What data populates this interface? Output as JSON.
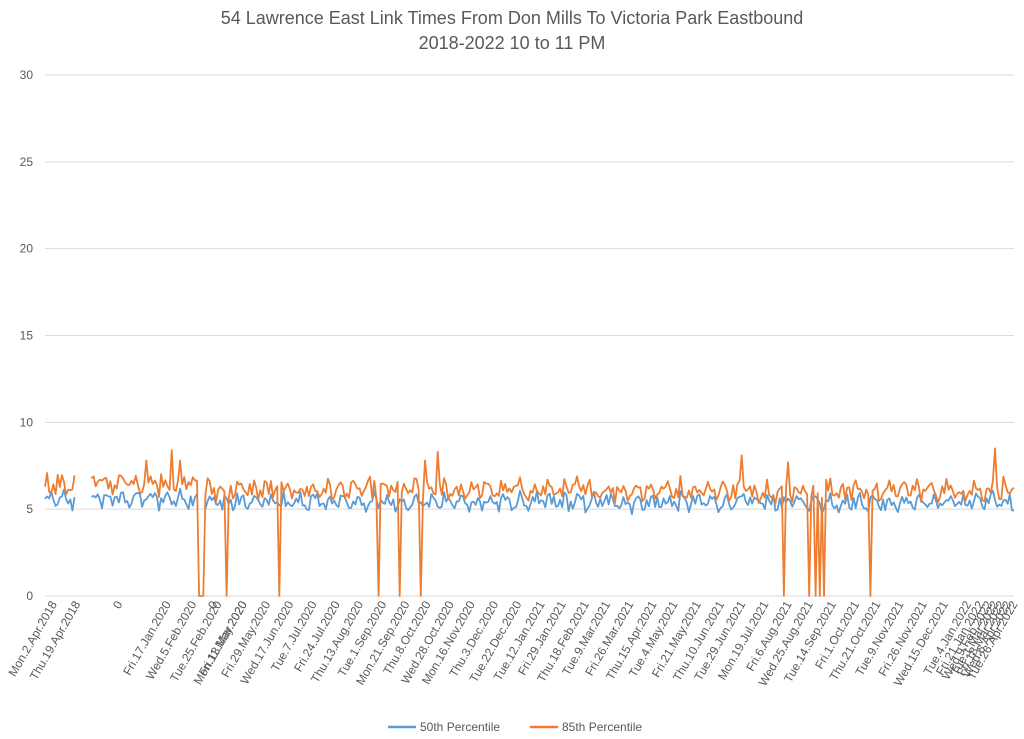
{
  "chart_data": {
    "type": "line",
    "title": "54 Lawrence East Link Times From Don Mills To Victoria Park Eastbound",
    "subtitle": "2018-2022 10 to 11 PM",
    "xlabel": "",
    "ylabel": "",
    "ylim": [
      0,
      30
    ],
    "yticks": [
      0,
      5,
      10,
      15,
      20,
      25,
      30
    ],
    "grid": true,
    "legend_position": "bottom",
    "n_points": 460,
    "x_tick_labels": [
      {
        "i": 4,
        "label": "Mon.2.Apr.2018"
      },
      {
        "i": 15,
        "label": "Thu.19.Apr.2018"
      },
      {
        "i": 35,
        "label": "0"
      },
      {
        "i": 58,
        "label": "Fri.17.Jan.2020"
      },
      {
        "i": 70,
        "label": "Wed.5.Feb.2020"
      },
      {
        "i": 82,
        "label": "Tue.25.Feb.2020"
      },
      {
        "i": 94,
        "label": "Fri.13.Mar.2020"
      },
      {
        "i": 80,
        "label": "0"
      },
      {
        "i": 94,
        "label": "Mon.11.May.2020"
      },
      {
        "i": 105,
        "label": "Fri.29.May.2020"
      },
      {
        "i": 116,
        "label": "Wed.17.Jun.2020"
      },
      {
        "i": 127,
        "label": "Tue.7.Jul.2020"
      },
      {
        "i": 138,
        "label": "Fri.24.Jul.2020"
      },
      {
        "i": 149,
        "label": "Thu.13.Aug.2020"
      },
      {
        "i": 160,
        "label": "Tue.1.Sep.2020"
      },
      {
        "i": 171,
        "label": "Mon.21.Sep.2020"
      },
      {
        "i": 181,
        "label": "Thu.8.Oct.2020"
      },
      {
        "i": 192,
        "label": "Wed.28.Oct.2020"
      },
      {
        "i": 202,
        "label": "Mon.16.Nov.2020"
      },
      {
        "i": 213,
        "label": "Thu.3.Dec.2020"
      },
      {
        "i": 224,
        "label": "Tue.22.Dec.2020"
      },
      {
        "i": 235,
        "label": "Tue.12.Jan.2021"
      },
      {
        "i": 245,
        "label": "Fri.29.Jan.2021"
      },
      {
        "i": 256,
        "label": "Thu.18.Feb.2021"
      },
      {
        "i": 266,
        "label": "Tue.9.Mar.2021"
      },
      {
        "i": 277,
        "label": "Fri.26.Mar.2021"
      },
      {
        "i": 288,
        "label": "Thu.15.Apr.2021"
      },
      {
        "i": 298,
        "label": "Tue.4.May.2021"
      },
      {
        "i": 309,
        "label": "Fri.21.May.2021"
      },
      {
        "i": 320,
        "label": "Thu.10.Jun.2021"
      },
      {
        "i": 330,
        "label": "Tue.29.Jun.2021"
      },
      {
        "i": 341,
        "label": "Mon.19.Jul.2021"
      },
      {
        "i": 352,
        "label": "Fri.6.Aug.2021"
      },
      {
        "i": 362,
        "label": "Wed.25.Aug.2021"
      },
      {
        "i": 373,
        "label": "Tue.14.Sep.2021"
      },
      {
        "i": 384,
        "label": "Fri.1.Oct.2021"
      },
      {
        "i": 394,
        "label": "Thu.21.Oct.2021"
      },
      {
        "i": 405,
        "label": "Tue.9.Nov.2021"
      },
      {
        "i": 416,
        "label": "Fri.26.Nov.2021"
      },
      {
        "i": 426,
        "label": "Wed.15.Dec.2021"
      },
      {
        "i": 437,
        "label": "Tue.4.Jan.2022"
      },
      {
        "i": 443,
        "label": "Fri.21.Jan.2022"
      },
      {
        "i": 447,
        "label": "Wed.9.Feb.2022"
      },
      {
        "i": 450,
        "label": "Tue.1.Mar.2022"
      },
      {
        "i": 453,
        "label": "Fri.18.Mar.2022"
      },
      {
        "i": 456,
        "label": "Wed.6.Apr.2022"
      },
      {
        "i": 459,
        "label": "Tue.26.Apr.2022"
      }
    ],
    "series": [
      {
        "name": "50th Percentile",
        "color": "#5B9BD5",
        "base": 5.4,
        "amplitude": 0.6,
        "segments": [
          {
            "start": 0,
            "end": 14,
            "level": 5.5
          },
          {
            "start": 22,
            "end": 72,
            "level": 5.6
          },
          {
            "start": 76,
            "end": 459,
            "level": 5.4
          }
        ],
        "gaps": [
          [
            15,
            21
          ]
        ],
        "dropouts": []
      },
      {
        "name": "85th Percentile",
        "color": "#ED7D31",
        "base": 6.2,
        "amplitude": 0.9,
        "segments": [
          {
            "start": 0,
            "end": 14,
            "level": 6.4
          },
          {
            "start": 22,
            "end": 72,
            "level": 6.5
          },
          {
            "start": 76,
            "end": 459,
            "level": 6.1
          }
        ],
        "gaps": [
          [
            15,
            21
          ]
        ],
        "dropouts": [
          73,
          74,
          75,
          86,
          111,
          158,
          168,
          178,
          350,
          362,
          365,
          367,
          369,
          391
        ],
        "peaks": [
          {
            "i": 48,
            "value": 7.8
          },
          {
            "i": 60,
            "value": 8.4
          },
          {
            "i": 64,
            "value": 7.8
          },
          {
            "i": 180,
            "value": 7.8
          },
          {
            "i": 186,
            "value": 8.3
          },
          {
            "i": 330,
            "value": 8.1
          },
          {
            "i": 352,
            "value": 7.7
          },
          {
            "i": 450,
            "value": 8.5
          }
        ]
      }
    ]
  }
}
